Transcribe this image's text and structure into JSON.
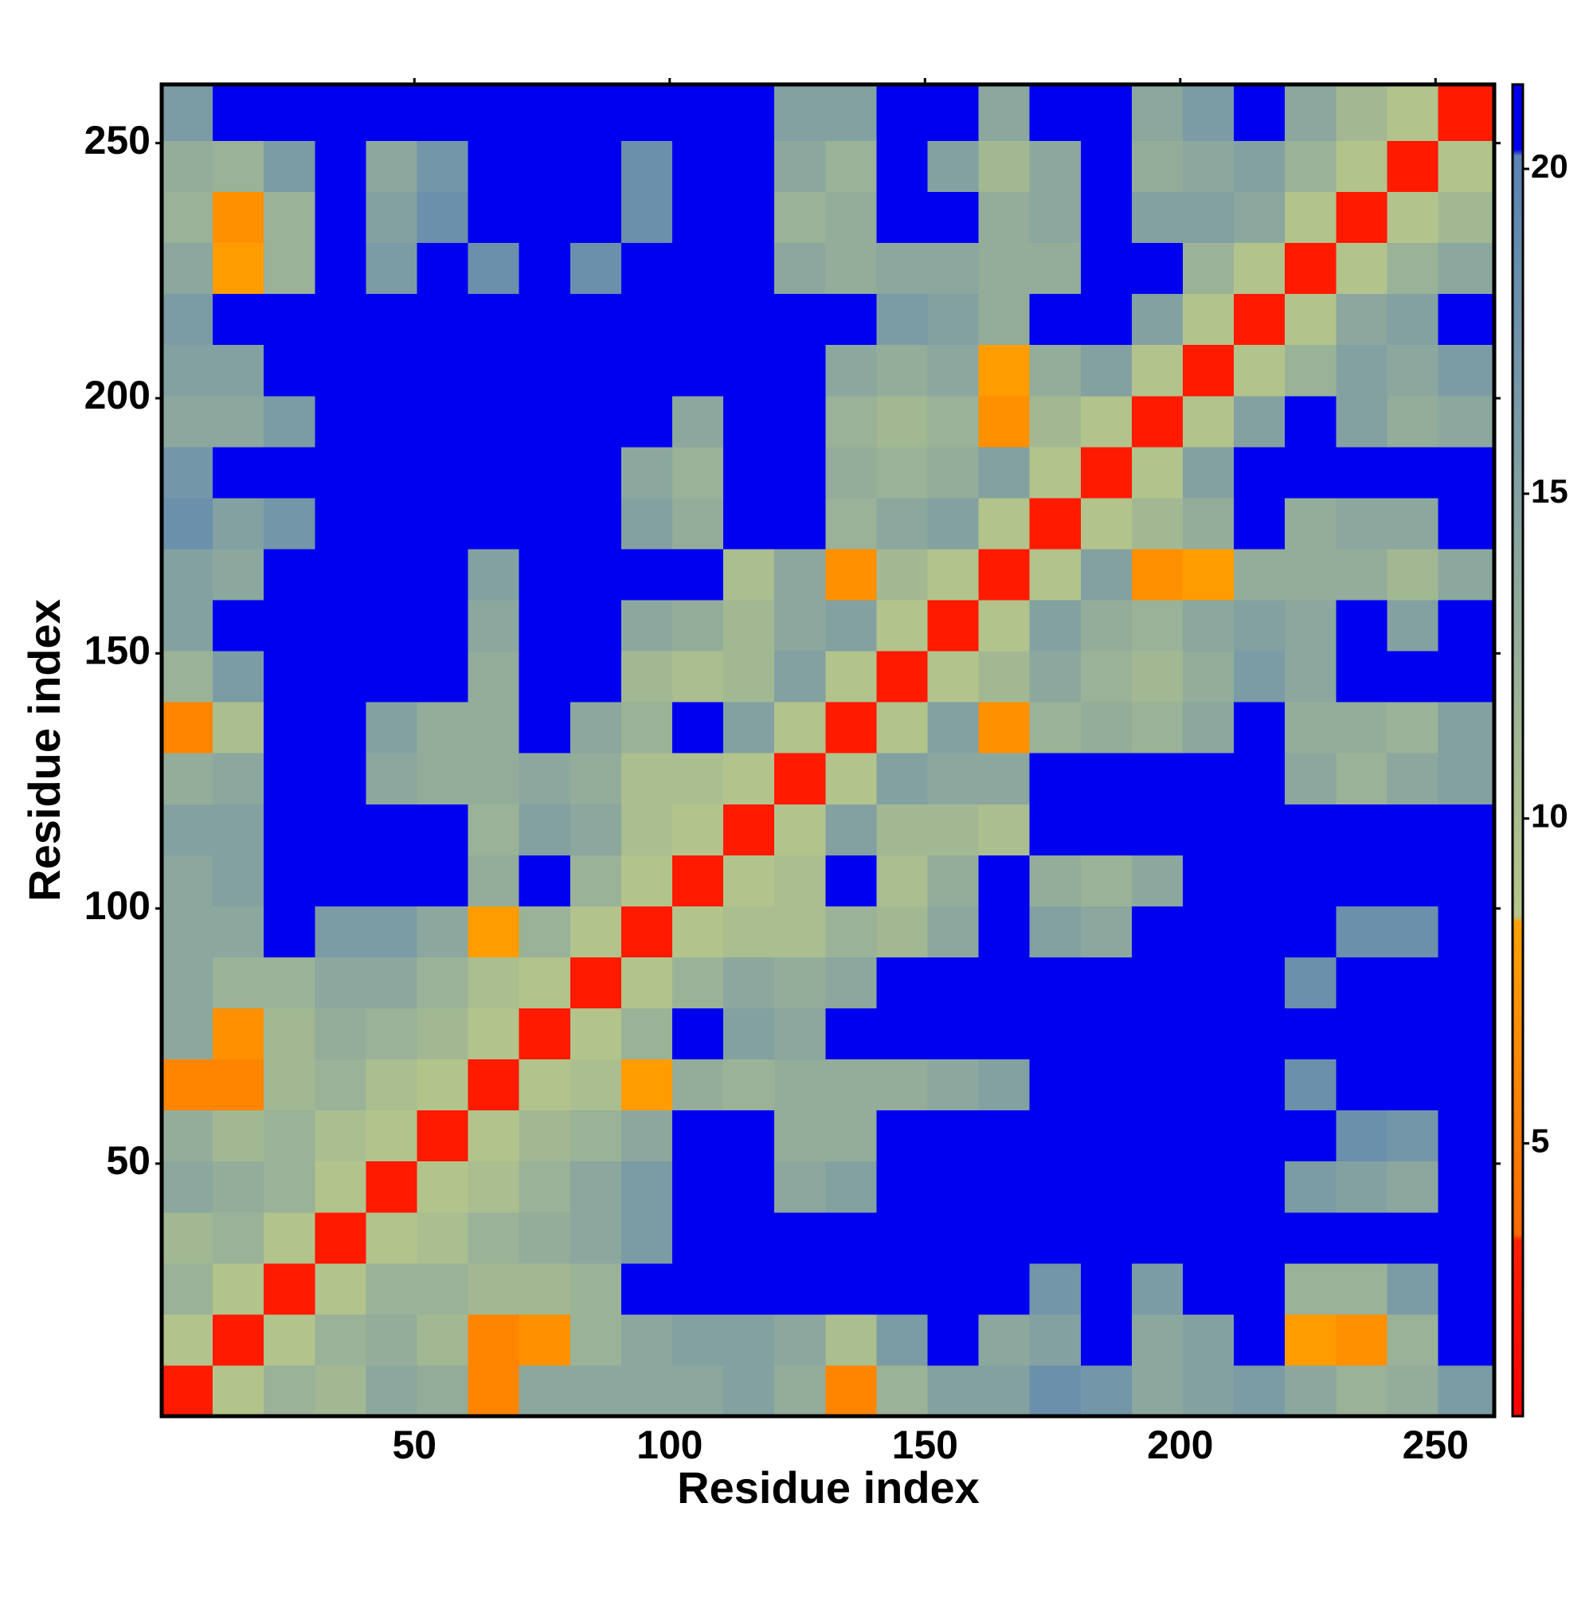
{
  "chart_data": {
    "type": "heatmap",
    "xlabel": "Residue index",
    "ylabel": "Residue index",
    "bins": [
      0.5,
      10.5,
      20.5,
      30.5,
      40.5,
      50.5,
      60.5,
      70.5,
      80.5,
      90.5,
      100.5,
      110.5,
      120.5,
      130.5,
      140.5,
      150.5,
      160.5,
      170.5,
      180.5,
      190.5,
      200.5,
      210.5,
      220.5,
      230.5,
      240.5,
      250.5,
      261.5
    ],
    "xlim": [
      0.5,
      261.5
    ],
    "ylim": [
      0.5,
      261.5
    ],
    "xticks": [
      50,
      100,
      150,
      200,
      250
    ],
    "yticks": [
      50,
      100,
      150,
      200,
      250
    ],
    "clim": [
      0.8,
      21.3
    ],
    "cticks": [
      5,
      10,
      15,
      20
    ],
    "colorscale": [
      [
        0.8,
        "#ff0000"
      ],
      [
        3.5,
        "#ff2000"
      ],
      [
        3.6,
        "#ff6a00"
      ],
      [
        8.4,
        "#ffa000"
      ],
      [
        8.5,
        "#b6c68a"
      ],
      [
        20.2,
        "#5a84b4"
      ],
      [
        20.3,
        "#0000f0"
      ],
      [
        21.3,
        "#0000f0"
      ]
    ],
    "z": [
      [
        3,
        9,
        12,
        11,
        14,
        13,
        6,
        14,
        14,
        14,
        14,
        15,
        13,
        6,
        12,
        15,
        15,
        18,
        17,
        14,
        15,
        16,
        14,
        12,
        13,
        16
      ],
      [
        9,
        3,
        9,
        12,
        13,
        11,
        6,
        7,
        12,
        14,
        15,
        15,
        14,
        10,
        16,
        21,
        14,
        15,
        21,
        14,
        15,
        21,
        8,
        7,
        12,
        21
      ],
      [
        12,
        9,
        3,
        9,
        12,
        12,
        11,
        11,
        12,
        21,
        21,
        21,
        21,
        21,
        21,
        21,
        21,
        17,
        21,
        16,
        21,
        21,
        12,
        12,
        16,
        21
      ],
      [
        11,
        12,
        9,
        3,
        9,
        10,
        12,
        13,
        14,
        16,
        21,
        21,
        21,
        21,
        21,
        21,
        21,
        21,
        21,
        21,
        21,
        21,
        21,
        21,
        21,
        21
      ],
      [
        14,
        13,
        12,
        9,
        3,
        9,
        10,
        12,
        14,
        16,
        21,
        21,
        14,
        15,
        21,
        21,
        21,
        21,
        21,
        21,
        21,
        21,
        16,
        15,
        14,
        21
      ],
      [
        13,
        11,
        12,
        10,
        9,
        3,
        9,
        11,
        12,
        14,
        21,
        21,
        13,
        13,
        21,
        21,
        21,
        21,
        21,
        21,
        21,
        21,
        21,
        18,
        17,
        21
      ],
      [
        6,
        6,
        11,
        12,
        10,
        9,
        3,
        9,
        10,
        8,
        13,
        12,
        13,
        13,
        13,
        14,
        15,
        21,
        21,
        21,
        21,
        21,
        18,
        21,
        21,
        21
      ],
      [
        14,
        7,
        11,
        13,
        12,
        11,
        9,
        3,
        9,
        12,
        21,
        15,
        14,
        21,
        21,
        21,
        21,
        21,
        21,
        21,
        21,
        21,
        21,
        21,
        21,
        21
      ],
      [
        14,
        12,
        12,
        14,
        14,
        12,
        10,
        9,
        3,
        9,
        12,
        14,
        13,
        14,
        21,
        21,
        21,
        21,
        21,
        21,
        21,
        21,
        18,
        21,
        21,
        21
      ],
      [
        14,
        14,
        21,
        16,
        16,
        14,
        8,
        12,
        9,
        3,
        9,
        10,
        10,
        12,
        11,
        14,
        21,
        15,
        14,
        21,
        21,
        21,
        21,
        18,
        18,
        21
      ],
      [
        14,
        15,
        21,
        21,
        21,
        21,
        13,
        21,
        12,
        9,
        3,
        9,
        10,
        21,
        10,
        13,
        21,
        13,
        12,
        14,
        21,
        21,
        21,
        21,
        21,
        21
      ],
      [
        15,
        15,
        21,
        21,
        21,
        21,
        12,
        15,
        14,
        10,
        9,
        3,
        9,
        15,
        11,
        11,
        10,
        21,
        21,
        21,
        21,
        21,
        21,
        21,
        21,
        21
      ],
      [
        13,
        14,
        21,
        21,
        14,
        13,
        13,
        14,
        13,
        10,
        10,
        9,
        3,
        9,
        15,
        14,
        14,
        21,
        21,
        21,
        21,
        21,
        14,
        12,
        14,
        15
      ],
      [
        6,
        10,
        21,
        21,
        15,
        13,
        13,
        21,
        14,
        12,
        21,
        15,
        9,
        3,
        9,
        15,
        7,
        12,
        13,
        12,
        14,
        21,
        13,
        13,
        12,
        15
      ],
      [
        12,
        16,
        21,
        21,
        21,
        21,
        13,
        21,
        21,
        11,
        10,
        11,
        15,
        9,
        3,
        9,
        11,
        14,
        12,
        11,
        13,
        16,
        14,
        21,
        21,
        21
      ],
      [
        15,
        21,
        21,
        21,
        21,
        21,
        14,
        21,
        21,
        14,
        13,
        11,
        14,
        15,
        9,
        3,
        9,
        15,
        13,
        12,
        14,
        15,
        14,
        21,
        15,
        21
      ],
      [
        15,
        14,
        21,
        21,
        21,
        21,
        15,
        21,
        21,
        21,
        21,
        10,
        14,
        7,
        11,
        9,
        3,
        9,
        15,
        7,
        8,
        13,
        13,
        13,
        11,
        14
      ],
      [
        18,
        15,
        17,
        21,
        21,
        21,
        21,
        21,
        21,
        15,
        13,
        21,
        21,
        12,
        14,
        15,
        9,
        3,
        9,
        11,
        13,
        21,
        13,
        14,
        14,
        21
      ],
      [
        17,
        21,
        21,
        21,
        21,
        21,
        21,
        21,
        21,
        14,
        12,
        21,
        21,
        13,
        12,
        13,
        15,
        9,
        3,
        9,
        15,
        21,
        21,
        21,
        21,
        21
      ],
      [
        14,
        14,
        16,
        21,
        21,
        21,
        21,
        21,
        21,
        21,
        14,
        21,
        21,
        12,
        11,
        12,
        7,
        11,
        9,
        3,
        9,
        15,
        21,
        15,
        13,
        14
      ],
      [
        15,
        15,
        21,
        21,
        21,
        21,
        21,
        21,
        21,
        21,
        21,
        21,
        21,
        14,
        13,
        14,
        8,
        13,
        15,
        9,
        3,
        9,
        12,
        15,
        14,
        16
      ],
      [
        16,
        21,
        21,
        21,
        21,
        21,
        21,
        21,
        21,
        21,
        21,
        21,
        21,
        21,
        16,
        15,
        13,
        21,
        21,
        15,
        9,
        3,
        9,
        14,
        15,
        21
      ],
      [
        14,
        8,
        12,
        21,
        16,
        21,
        18,
        21,
        18,
        21,
        21,
        21,
        14,
        13,
        14,
        14,
        13,
        13,
        21,
        21,
        12,
        9,
        3,
        9,
        12,
        14
      ],
      [
        12,
        7,
        12,
        21,
        15,
        18,
        21,
        21,
        21,
        18,
        21,
        21,
        12,
        13,
        21,
        21,
        13,
        14,
        21,
        15,
        15,
        14,
        9,
        3,
        9,
        11
      ],
      [
        13,
        12,
        16,
        21,
        14,
        17,
        21,
        21,
        21,
        18,
        21,
        21,
        14,
        12,
        21,
        15,
        11,
        14,
        21,
        13,
        14,
        15,
        12,
        9,
        3,
        9
      ],
      [
        16,
        21,
        21,
        21,
        21,
        21,
        21,
        21,
        21,
        21,
        21,
        21,
        15,
        15,
        21,
        21,
        14,
        21,
        21,
        14,
        16,
        21,
        14,
        11,
        9,
        3
      ]
    ]
  }
}
